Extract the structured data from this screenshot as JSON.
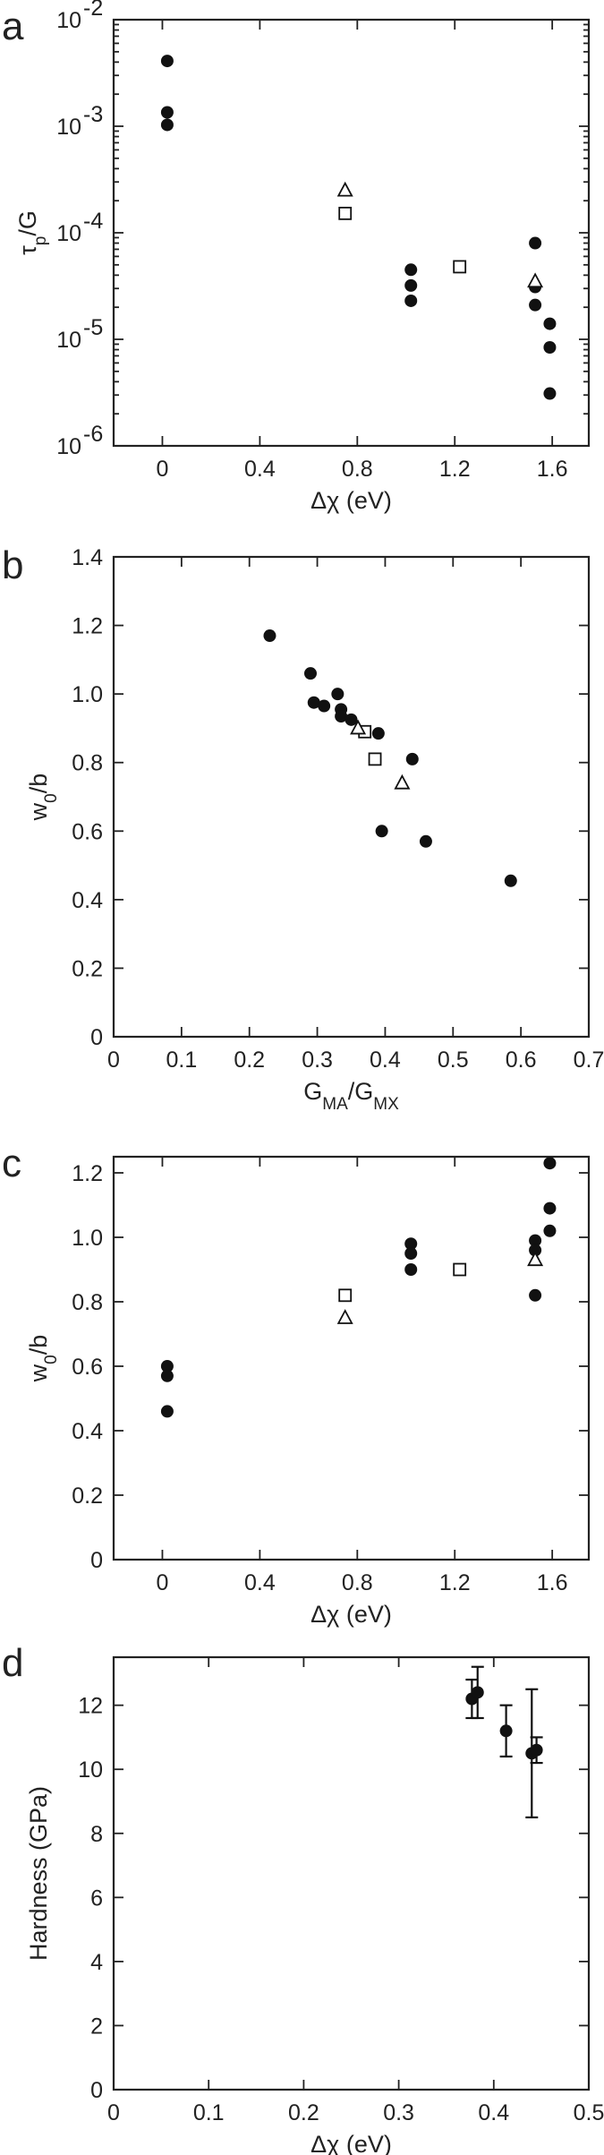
{
  "chart_data": [
    {
      "type": "scatter",
      "panel_label": "a",
      "xlabel": "Δχ (eV)",
      "ylabel": "τp/G",
      "ylabel_parts": {
        "base": "τ",
        "sub": "p",
        "tail": "/G"
      },
      "yscale": "log",
      "xlim": [
        -0.2,
        1.75
      ],
      "ylim": [
        1e-06,
        0.01
      ],
      "xticks": [
        0,
        0.4,
        0.8,
        1.2,
        1.6
      ],
      "xtick_labels": [
        "0",
        "0.4",
        "0.8",
        "1.2",
        "1.6"
      ],
      "yticks": [
        1e-06,
        1e-05,
        0.0001,
        0.001,
        0.01
      ],
      "ytick_labels": [
        {
          "base": "10",
          "exp": "-6"
        },
        {
          "base": "10",
          "exp": "-5"
        },
        {
          "base": "10",
          "exp": "-4"
        },
        {
          "base": "10",
          "exp": "-3"
        },
        {
          "base": "10",
          "exp": "-2"
        }
      ],
      "series": [
        {
          "marker": "filled-circle",
          "points": [
            [
              0.02,
              0.0041
            ],
            [
              0.02,
              0.00135
            ],
            [
              0.02,
              0.00103
            ],
            [
              1.02,
              4.5e-05
            ],
            [
              1.02,
              3.2e-05
            ],
            [
              1.02,
              2.3e-05
            ],
            [
              1.53,
              8e-05
            ],
            [
              1.53,
              3.1e-05
            ],
            [
              1.53,
              2.1e-05
            ],
            [
              1.59,
              1.4e-05
            ],
            [
              1.59,
              8.4e-06
            ],
            [
              1.59,
              3.1e-06
            ]
          ]
        },
        {
          "marker": "open-square",
          "points": [
            [
              0.75,
              0.000152
            ],
            [
              1.22,
              4.8e-05
            ]
          ]
        },
        {
          "marker": "open-triangle",
          "points": [
            [
              0.75,
              0.00025
            ],
            [
              1.53,
              3.5e-05
            ]
          ]
        }
      ]
    },
    {
      "type": "scatter",
      "panel_label": "b",
      "xlabel": "GMA/GMX",
      "xlabel_parts": {
        "a": "G",
        "a_sub": "MA",
        "mid": "/G",
        "b_sub": "MX"
      },
      "ylabel": "w0/b",
      "ylabel_parts": {
        "base": "w",
        "sub": "0",
        "tail": "/b"
      },
      "xlim": [
        0,
        0.7
      ],
      "ylim": [
        0,
        1.4
      ],
      "xticks": [
        0,
        0.1,
        0.2,
        0.3,
        0.4,
        0.5,
        0.6,
        0.7
      ],
      "xtick_labels": [
        "0",
        "0.1",
        "0.2",
        "0.3",
        "0.4",
        "0.5",
        "0.6",
        "0.7"
      ],
      "yticks": [
        0,
        0.2,
        0.4,
        0.6,
        0.8,
        1.0,
        1.2,
        1.4
      ],
      "ytick_labels": [
        "0",
        "0.2",
        "0.4",
        "0.6",
        "0.8",
        "1.0",
        "1.2",
        "1.4"
      ],
      "series": [
        {
          "marker": "filled-circle",
          "points": [
            [
              0.23,
              1.17
            ],
            [
              0.29,
              1.06
            ],
            [
              0.295,
              0.975
            ],
            [
              0.31,
              0.965
            ],
            [
              0.33,
              1.0
            ],
            [
              0.335,
              0.955
            ],
            [
              0.335,
              0.935
            ],
            [
              0.35,
              0.925
            ],
            [
              0.39,
              0.885
            ],
            [
              0.44,
              0.81
            ],
            [
              0.395,
              0.6
            ],
            [
              0.46,
              0.57
            ],
            [
              0.585,
              0.455
            ]
          ]
        },
        {
          "marker": "open-square",
          "points": [
            [
              0.37,
              0.89
            ],
            [
              0.385,
              0.81
            ]
          ]
        },
        {
          "marker": "open-triangle",
          "points": [
            [
              0.36,
              0.9
            ],
            [
              0.425,
              0.74
            ]
          ]
        }
      ]
    },
    {
      "type": "scatter",
      "panel_label": "c",
      "xlabel": "Δχ (eV)",
      "ylabel": "w0/b",
      "ylabel_parts": {
        "base": "w",
        "sub": "0",
        "tail": "/b"
      },
      "xlim": [
        -0.2,
        1.75
      ],
      "ylim": [
        0,
        1.25
      ],
      "xticks": [
        0,
        0.4,
        0.8,
        1.2,
        1.6
      ],
      "xtick_labels": [
        "0",
        "0.4",
        "0.8",
        "1.2",
        "1.6"
      ],
      "yticks": [
        0,
        0.2,
        0.4,
        0.6,
        0.8,
        1.0,
        1.2
      ],
      "ytick_labels": [
        "0",
        "0.2",
        "0.4",
        "0.6",
        "0.8",
        "1.0",
        "1.2"
      ],
      "series": [
        {
          "marker": "filled-circle",
          "points": [
            [
              0.02,
              0.6
            ],
            [
              0.02,
              0.57
            ],
            [
              0.02,
              0.46
            ],
            [
              1.02,
              0.98
            ],
            [
              1.02,
              0.95
            ],
            [
              1.02,
              0.9
            ],
            [
              1.53,
              0.99
            ],
            [
              1.53,
              0.96
            ],
            [
              1.53,
              0.82
            ],
            [
              1.59,
              1.23
            ],
            [
              1.59,
              1.09
            ],
            [
              1.59,
              1.02
            ]
          ]
        },
        {
          "marker": "open-square",
          "points": [
            [
              0.75,
              0.82
            ],
            [
              1.22,
              0.9
            ]
          ]
        },
        {
          "marker": "open-triangle",
          "points": [
            [
              0.75,
              0.75
            ],
            [
              1.53,
              0.93
            ]
          ]
        }
      ]
    },
    {
      "type": "scatter",
      "panel_label": "d",
      "xlabel": "Δχ (eV)",
      "ylabel": "Hardness (GPa)",
      "xlim": [
        0,
        0.5
      ],
      "ylim": [
        0,
        13.5
      ],
      "xticks": [
        0,
        0.1,
        0.2,
        0.3,
        0.4,
        0.5
      ],
      "xtick_labels": [
        "0",
        "0.1",
        "0.2",
        "0.3",
        "0.4",
        "0.5"
      ],
      "yticks": [
        0,
        2,
        4,
        6,
        8,
        10,
        12
      ],
      "ytick_labels": [
        "0",
        "2",
        "4",
        "6",
        "8",
        "10",
        "12"
      ],
      "series": [
        {
          "marker": "filled-circle",
          "points": [
            [
              0.377,
              12.2
            ],
            [
              0.383,
              12.4
            ],
            [
              0.413,
              11.2
            ],
            [
              0.44,
              10.5
            ],
            [
              0.445,
              10.6
            ]
          ],
          "error": [
            [
              11.6,
              12.8
            ],
            [
              11.6,
              13.2
            ],
            [
              10.4,
              12.0
            ],
            [
              8.5,
              12.5
            ],
            [
              10.2,
              11.0
            ]
          ]
        }
      ]
    }
  ]
}
